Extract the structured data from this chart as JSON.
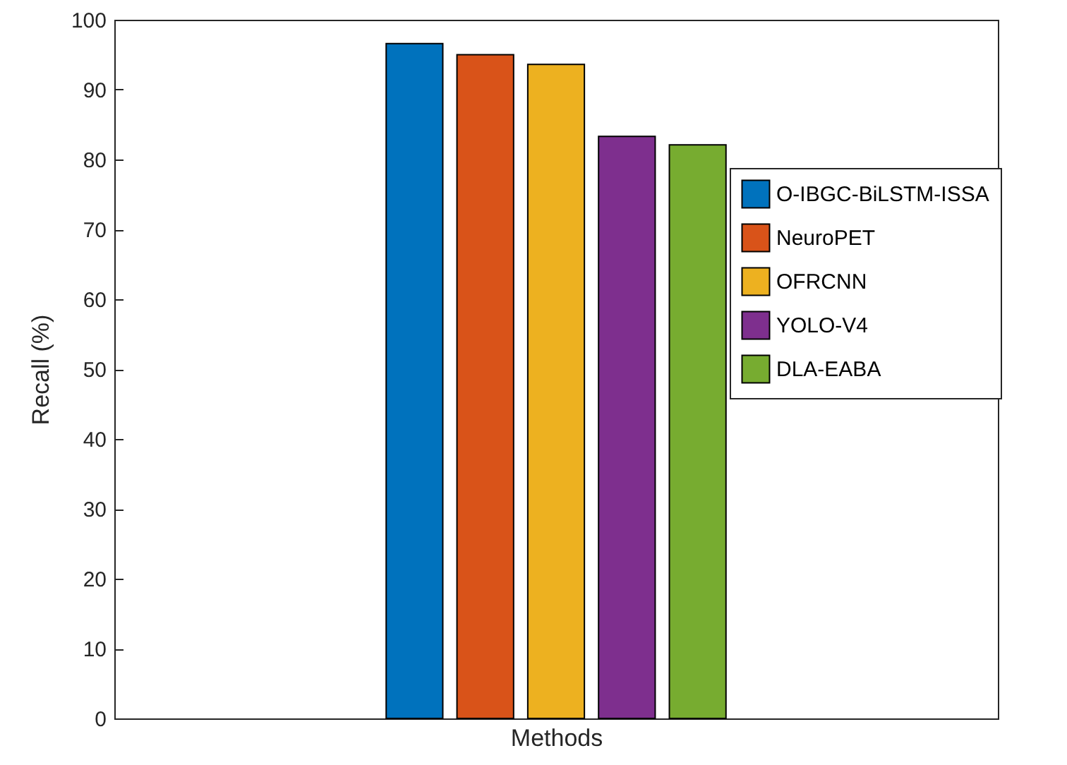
{
  "chart_data": {
    "type": "bar",
    "xlabel": "Methods",
    "ylabel": "Recall (%)",
    "categories": [
      null
    ],
    "series": [
      {
        "name": "O-IBGC-BiLSTM-ISSA",
        "color": "#0072bd",
        "values": [
          96.6
        ]
      },
      {
        "name": "NeuroPET",
        "color": "#d95319",
        "values": [
          95.0
        ]
      },
      {
        "name": "OFRCNN",
        "color": "#edb120",
        "values": [
          93.6
        ]
      },
      {
        "name": "YOLO-V4",
        "color": "#7e2f8e",
        "values": [
          83.3
        ]
      },
      {
        "name": "DLA-EABA",
        "color": "#77ac30",
        "values": [
          82.1
        ]
      }
    ],
    "ylim": [
      0,
      100
    ],
    "yticks": [
      0,
      10,
      20,
      30,
      40,
      50,
      60,
      70,
      80,
      90,
      100
    ],
    "grid": false,
    "legend": "right",
    "tick_labels": "y"
  }
}
